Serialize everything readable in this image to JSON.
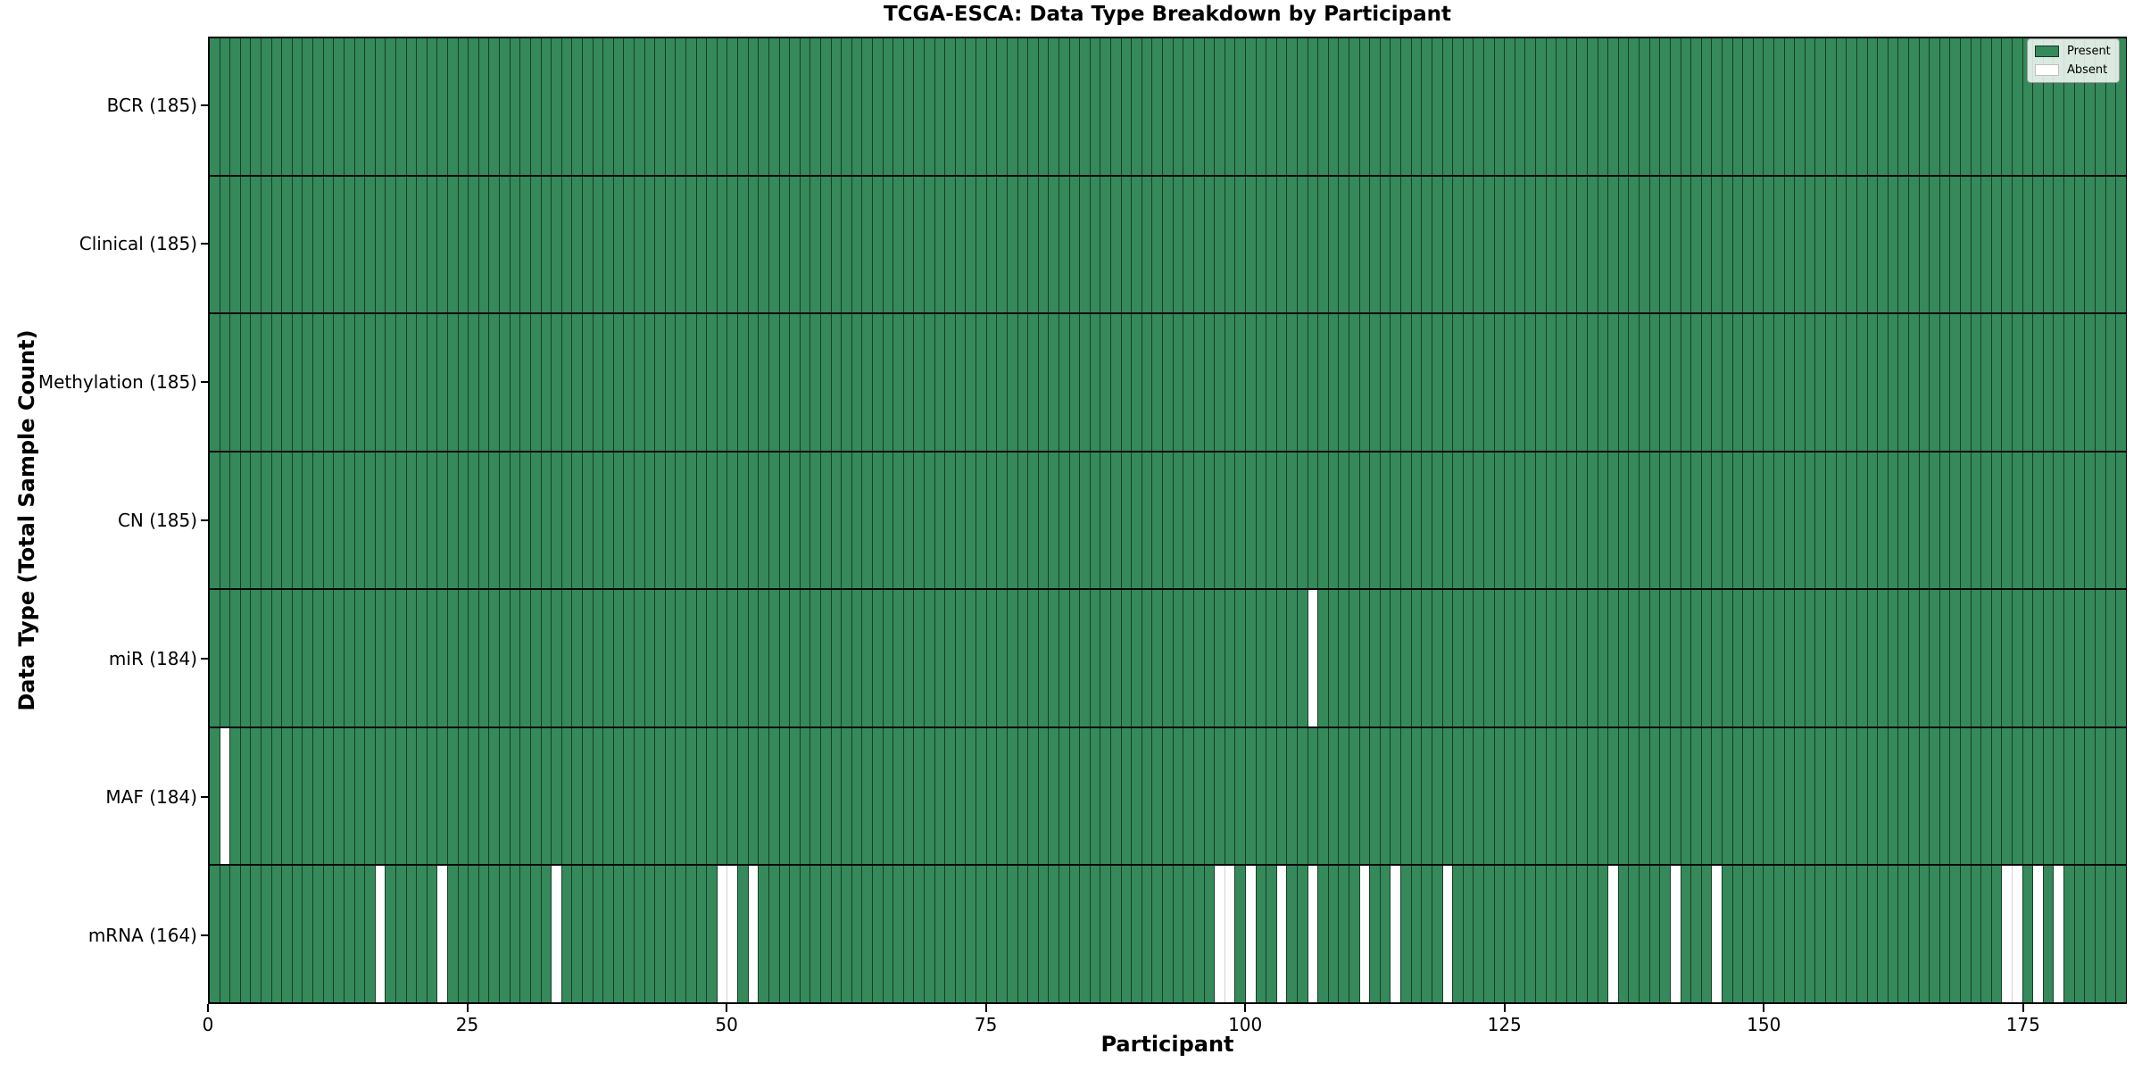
{
  "chart_data": {
    "type": "heatmap",
    "title": "TCGA-ESCA: Data Type Breakdown by Participant",
    "xlabel": "Participant",
    "ylabel": "Data Type (Total Sample Count)",
    "n_participants": 185,
    "x_range": [
      0,
      185
    ],
    "x_ticks": [
      0,
      25,
      50,
      75,
      100,
      125,
      150,
      175
    ],
    "grid": false,
    "legend_position": "upper-right",
    "legend": [
      {
        "label": "Present",
        "color": "#35895A"
      },
      {
        "label": "Absent",
        "color": "#ffffff"
      }
    ],
    "colors": {
      "present_fill": "#35895A",
      "absent_fill": "#ffffff",
      "bar_edge": "rgba(0,0,0,0.55)",
      "absent_edge": "rgba(0,0,0,0.18)",
      "spine": "#000000"
    },
    "rows": [
      {
        "data_type": "BCR",
        "label": "BCR (185)",
        "total": 185,
        "absent_bar_positions_1based": []
      },
      {
        "data_type": "Clinical",
        "label": "Clinical (185)",
        "total": 185,
        "absent_bar_positions_1based": []
      },
      {
        "data_type": "Methylation",
        "label": "Methylation (185)",
        "total": 185,
        "absent_bar_positions_1based": []
      },
      {
        "data_type": "CN",
        "label": "CN (185)",
        "total": 185,
        "absent_bar_positions_1based": []
      },
      {
        "data_type": "miR",
        "label": "miR (184)",
        "total": 184,
        "absent_bar_positions_1based": [
          107
        ]
      },
      {
        "data_type": "MAF",
        "label": "MAF (184)",
        "total": 184,
        "absent_bar_positions_1based": [
          2
        ]
      },
      {
        "data_type": "mRNA",
        "label": "mRNA (164)",
        "total": 164,
        "absent_bar_positions_1based": [
          17,
          23,
          34,
          50,
          51,
          53,
          98,
          99,
          101,
          104,
          107,
          112,
          115,
          120,
          136,
          142,
          146,
          174,
          175,
          177,
          179
        ]
      }
    ]
  }
}
